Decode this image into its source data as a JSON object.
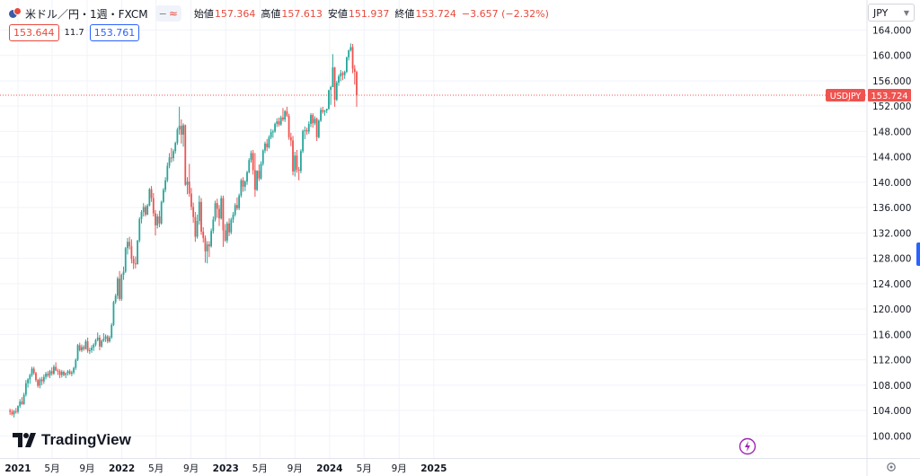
{
  "legend": {
    "symbol_title": "米ドル／円・1週・FXCM",
    "indicator_toggle": "≈",
    "open_label": "始値",
    "open_value": "157.364",
    "high_label": "高値",
    "high_value": "157.613",
    "low_label": "安値",
    "low_value": "151.937",
    "close_label": "終値",
    "close_value": "153.724",
    "change_value": "−3.657 (−2.32%)",
    "sell_price": "153.644",
    "spread": "11.7",
    "buy_price": "153.761"
  },
  "currency_selector": "JPY",
  "price_tag": {
    "symbol": "USDJPY",
    "value": "153.724"
  },
  "logo_text": "TradingView",
  "colors": {
    "up": "#26a69a",
    "down": "#ef5350",
    "grid": "#f0f3fa",
    "axis_text": "#131722",
    "last_line": "#ef5350",
    "legend_red": "#e8493d"
  },
  "icons": {
    "symbol": "flag-icon",
    "flash": "lightning-icon",
    "settings": "gear-icon"
  },
  "chart_data": {
    "type": "candlestick",
    "instrument": "USDJPY",
    "interval": "1 week",
    "ylim": [
      98,
      166
    ],
    "y_ticks": [
      100,
      104,
      108,
      112,
      116,
      120,
      124,
      128,
      132,
      136,
      140,
      144,
      148,
      152,
      156,
      160,
      164
    ],
    "x_ticks": [
      {
        "label": "2021",
        "date": "2021-01-01"
      },
      {
        "label": "5月",
        "date": "2021-05-01"
      },
      {
        "label": "9月",
        "date": "2021-09-01"
      },
      {
        "label": "2022",
        "date": "2022-01-01"
      },
      {
        "label": "5月",
        "date": "2022-05-01"
      },
      {
        "label": "9月",
        "date": "2022-09-01"
      },
      {
        "label": "2023",
        "date": "2023-01-01"
      },
      {
        "label": "5月",
        "date": "2023-05-01"
      },
      {
        "label": "9月",
        "date": "2023-09-01"
      },
      {
        "label": "2024",
        "date": "2024-01-01"
      },
      {
        "label": "5月",
        "date": "2024-05-01"
      },
      {
        "label": "9月",
        "date": "2024-09-01"
      },
      {
        "label": "2025",
        "date": "2025-01-01"
      }
    ],
    "first_candle_date": "2020-12-04",
    "last_close": 153.724,
    "candles": [
      [
        104.0,
        104.3,
        103.3,
        103.8
      ],
      [
        103.8,
        104.2,
        103.2,
        103.4
      ],
      [
        103.4,
        104.1,
        102.9,
        103.9
      ],
      [
        103.9,
        104.4,
        103.5,
        103.8
      ],
      [
        103.8,
        104.8,
        103.5,
        104.7
      ],
      [
        104.7,
        105.8,
        104.4,
        105.4
      ],
      [
        105.4,
        106.1,
        104.9,
        105.0
      ],
      [
        105.0,
        106.8,
        104.9,
        106.5
      ],
      [
        106.5,
        108.8,
        106.2,
        108.3
      ],
      [
        108.3,
        109.1,
        107.6,
        108.9
      ],
      [
        108.9,
        109.8,
        108.2,
        109.6
      ],
      [
        109.6,
        110.9,
        109.3,
        110.6
      ],
      [
        110.6,
        110.9,
        109.6,
        109.9
      ],
      [
        109.9,
        110.1,
        108.5,
        108.8
      ],
      [
        108.8,
        109.0,
        107.6,
        107.9
      ],
      [
        107.9,
        109.2,
        107.5,
        108.9
      ],
      [
        108.9,
        109.3,
        108.0,
        108.6
      ],
      [
        108.6,
        109.7,
        108.2,
        109.3
      ],
      [
        109.3,
        110.1,
        108.9,
        109.8
      ],
      [
        109.8,
        110.2,
        109.2,
        109.5
      ],
      [
        109.5,
        110.4,
        109.1,
        110.2
      ],
      [
        110.2,
        110.8,
        109.5,
        109.8
      ],
      [
        109.8,
        111.2,
        109.6,
        110.9
      ],
      [
        110.9,
        111.6,
        110.2,
        110.3
      ],
      [
        110.3,
        110.6,
        109.6,
        110.2
      ],
      [
        110.2,
        110.5,
        109.1,
        109.6
      ],
      [
        109.6,
        110.4,
        109.2,
        110.1
      ],
      [
        110.1,
        110.3,
        109.4,
        109.6
      ],
      [
        109.6,
        110.0,
        109.1,
        109.9
      ],
      [
        109.9,
        110.4,
        109.5,
        110.2
      ],
      [
        110.2,
        110.5,
        109.6,
        109.8
      ],
      [
        109.8,
        110.3,
        109.4,
        110.0
      ],
      [
        110.0,
        110.9,
        109.7,
        110.7
      ],
      [
        110.7,
        112.2,
        110.4,
        112.0
      ],
      [
        112.0,
        114.5,
        111.8,
        114.3
      ],
      [
        114.3,
        114.7,
        113.3,
        113.5
      ],
      [
        113.5,
        114.4,
        113.2,
        114.0
      ],
      [
        114.0,
        114.3,
        113.4,
        113.7
      ],
      [
        113.7,
        115.2,
        113.6,
        114.9
      ],
      [
        114.9,
        115.5,
        113.1,
        113.4
      ],
      [
        113.4,
        113.9,
        112.9,
        113.5
      ],
      [
        113.5,
        114.3,
        113.1,
        113.9
      ],
      [
        113.9,
        114.6,
        113.4,
        114.4
      ],
      [
        114.4,
        115.3,
        114.1,
        115.1
      ],
      [
        115.1,
        116.3,
        114.9,
        115.5
      ],
      [
        115.5,
        115.9,
        113.5,
        114.1
      ],
      [
        114.1,
        115.2,
        113.9,
        115.0
      ],
      [
        115.0,
        116.2,
        114.8,
        115.3
      ],
      [
        115.3,
        116.0,
        114.8,
        115.7
      ],
      [
        115.7,
        115.9,
        114.6,
        114.9
      ],
      [
        114.9,
        115.8,
        114.7,
        115.5
      ],
      [
        115.5,
        117.8,
        115.3,
        117.5
      ],
      [
        117.5,
        121.3,
        117.3,
        121.1
      ],
      [
        121.1,
        122.4,
        120.8,
        122.1
      ],
      [
        122.1,
        125.1,
        121.6,
        124.8
      ],
      [
        124.8,
        126.0,
        121.3,
        121.6
      ],
      [
        121.6,
        125.6,
        121.3,
        125.4
      ],
      [
        125.4,
        126.7,
        124.6,
        125.9
      ],
      [
        125.9,
        129.8,
        125.7,
        129.6
      ],
      [
        129.6,
        131.2,
        128.6,
        130.6
      ],
      [
        130.6,
        131.4,
        129.4,
        129.9
      ],
      [
        129.9,
        131.0,
        127.2,
        127.9
      ],
      [
        127.9,
        128.4,
        126.3,
        127.2
      ],
      [
        127.2,
        128.3,
        126.4,
        127.1
      ],
      [
        127.1,
        130.9,
        127.0,
        130.8
      ],
      [
        130.8,
        134.5,
        130.5,
        134.2
      ],
      [
        134.2,
        135.6,
        133.5,
        135.3
      ],
      [
        135.3,
        136.7,
        134.6,
        136.1
      ],
      [
        136.1,
        136.4,
        134.6,
        134.9
      ],
      [
        134.9,
        136.6,
        134.8,
        136.3
      ],
      [
        136.3,
        139.1,
        136.2,
        138.9
      ],
      [
        138.9,
        139.4,
        136.9,
        137.5
      ],
      [
        137.5,
        138.3,
        134.6,
        135.1
      ],
      [
        135.1,
        135.6,
        131.6,
        133.2
      ],
      [
        133.2,
        135.0,
        132.7,
        134.6
      ],
      [
        134.6,
        135.5,
        132.9,
        133.5
      ],
      [
        133.5,
        137.1,
        133.3,
        136.9
      ],
      [
        136.9,
        139.1,
        136.7,
        138.8
      ],
      [
        138.8,
        140.8,
        138.4,
        140.3
      ],
      [
        140.3,
        143.1,
        140.0,
        142.6
      ],
      [
        142.6,
        144.6,
        142.2,
        143.9
      ],
      [
        143.9,
        145.4,
        143.1,
        143.8
      ],
      [
        143.8,
        145.2,
        143.3,
        144.9
      ],
      [
        144.9,
        146.4,
        144.5,
        146.2
      ],
      [
        146.2,
        148.6,
        145.9,
        148.3
      ],
      [
        148.3,
        151.9,
        147.5,
        148.9
      ],
      [
        148.9,
        149.9,
        146.1,
        147.5
      ],
      [
        147.5,
        149.3,
        145.6,
        149.0
      ],
      [
        149.0,
        149.1,
        139.4,
        139.6
      ],
      [
        139.6,
        140.8,
        138.1,
        140.1
      ],
      [
        140.1,
        142.9,
        137.7,
        138.2
      ],
      [
        138.2,
        139.1,
        135.6,
        136.1
      ],
      [
        136.1,
        136.8,
        133.6,
        134.5
      ],
      [
        134.5,
        135.3,
        130.6,
        131.4
      ],
      [
        131.4,
        134.9,
        131.1,
        133.9
      ],
      [
        133.9,
        137.9,
        133.3,
        136.9
      ],
      [
        136.9,
        137.5,
        131.7,
        132.2
      ],
      [
        132.2,
        132.9,
        130.5,
        131.2
      ],
      [
        131.2,
        131.6,
        127.3,
        129.1
      ],
      [
        129.1,
        130.7,
        127.2,
        130.2
      ],
      [
        130.2,
        130.7,
        128.2,
        129.9
      ],
      [
        129.9,
        132.7,
        129.7,
        132.3
      ],
      [
        132.3,
        134.6,
        131.9,
        134.1
      ],
      [
        134.1,
        137.1,
        133.8,
        136.7
      ],
      [
        136.7,
        137.4,
        134.4,
        135.8
      ],
      [
        135.8,
        136.4,
        133.1,
        134.3
      ],
      [
        134.3,
        137.9,
        134.1,
        137.5
      ],
      [
        137.5,
        137.9,
        129.8,
        132.4
      ],
      [
        132.4,
        133.4,
        130.6,
        130.8
      ],
      [
        130.8,
        133.8,
        130.4,
        133.5
      ],
      [
        133.5,
        134.3,
        131.5,
        132.1
      ],
      [
        132.1,
        134.4,
        131.8,
        134.1
      ],
      [
        134.1,
        135.3,
        133.6,
        134.9
      ],
      [
        134.9,
        136.7,
        134.6,
        136.4
      ],
      [
        136.4,
        137.6,
        135.6,
        135.9
      ],
      [
        135.9,
        138.2,
        135.6,
        137.9
      ],
      [
        137.9,
        140.6,
        137.6,
        140.3
      ],
      [
        140.3,
        140.8,
        138.5,
        139.3
      ],
      [
        139.3,
        140.3,
        138.6,
        140.1
      ],
      [
        140.1,
        141.8,
        139.6,
        141.6
      ],
      [
        141.6,
        143.8,
        141.4,
        143.5
      ],
      [
        143.5,
        145.0,
        143.1,
        144.6
      ],
      [
        144.6,
        145.1,
        141.2,
        141.9
      ],
      [
        141.9,
        144.6,
        137.7,
        138.8
      ],
      [
        138.8,
        141.9,
        138.6,
        141.8
      ],
      [
        141.8,
        142.8,
        140.2,
        140.6
      ],
      [
        140.6,
        143.3,
        140.4,
        142.9
      ],
      [
        142.9,
        145.2,
        142.6,
        145.0
      ],
      [
        145.0,
        146.4,
        144.6,
        146.1
      ],
      [
        146.1,
        146.8,
        144.9,
        145.5
      ],
      [
        145.5,
        147.4,
        145.3,
        147.1
      ],
      [
        147.1,
        148.4,
        146.8,
        147.9
      ],
      [
        147.9,
        148.3,
        147.0,
        148.0
      ],
      [
        148.0,
        149.4,
        147.8,
        149.2
      ],
      [
        149.2,
        150.1,
        148.7,
        149.6
      ],
      [
        149.6,
        150.2,
        148.8,
        149.1
      ],
      [
        149.1,
        150.5,
        148.9,
        150.2
      ],
      [
        150.2,
        151.7,
        149.6,
        149.9
      ],
      [
        149.9,
        151.4,
        149.5,
        151.2
      ],
      [
        151.2,
        151.9,
        150.3,
        150.5
      ],
      [
        150.5,
        150.8,
        146.7,
        147.1
      ],
      [
        147.1,
        147.8,
        145.7,
        146.6
      ],
      [
        146.6,
        147.3,
        141.1,
        141.7
      ],
      [
        141.7,
        144.8,
        140.9,
        144.2
      ],
      [
        144.2,
        145.1,
        141.5,
        142.0
      ],
      [
        142.0,
        142.4,
        140.3,
        141.8
      ],
      [
        141.8,
        145.2,
        141.4,
        144.9
      ],
      [
        144.9,
        148.3,
        144.6,
        148.1
      ],
      [
        148.1,
        148.8,
        146.8,
        148.2
      ],
      [
        148.2,
        148.6,
        147.5,
        148.0
      ],
      [
        148.0,
        149.6,
        147.6,
        149.2
      ],
      [
        149.2,
        150.9,
        148.7,
        150.6
      ],
      [
        150.6,
        150.9,
        148.6,
        149.3
      ],
      [
        149.3,
        150.4,
        149.0,
        150.0
      ],
      [
        150.0,
        150.2,
        146.5,
        147.1
      ],
      [
        147.1,
        149.9,
        146.9,
        149.7
      ],
      [
        149.7,
        151.8,
        149.5,
        151.4
      ],
      [
        151.4,
        151.9,
        150.8,
        151.1
      ],
      [
        151.1,
        151.4,
        150.5,
        151.3
      ],
      [
        151.3,
        151.6,
        150.9,
        151.6
      ],
      [
        151.6,
        154.6,
        151.4,
        154.5
      ],
      [
        154.6,
        155.2,
        152.2,
        155.0
      ],
      [
        155.0,
        160.2,
        155.0,
        158.1
      ],
      [
        158.1,
        158.2,
        151.9,
        153.0
      ],
      [
        153.0,
        156.0,
        152.8,
        155.7
      ],
      [
        155.7,
        157.0,
        155.2,
        156.7
      ],
      [
        156.7,
        157.7,
        155.9,
        157.2
      ],
      [
        157.2,
        157.5,
        156.1,
        156.9
      ],
      [
        156.9,
        157.6,
        156.3,
        157.4
      ],
      [
        157.4,
        159.8,
        157.2,
        159.7
      ],
      [
        159.7,
        160.9,
        159.2,
        160.8
      ],
      [
        160.8,
        161.9,
        160.6,
        161.3
      ],
      [
        161.3,
        161.8,
        157.2,
        157.9
      ],
      [
        157.9,
        158.5,
        155.4,
        157.4
      ],
      [
        157.4,
        157.6,
        151.9,
        153.7
      ]
    ]
  }
}
